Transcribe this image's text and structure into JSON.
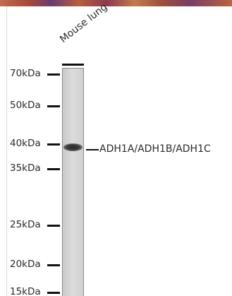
{
  "figure": {
    "lane_label": "Mouse lung",
    "band_label": "ADH1A/ADH1B/ADH1C",
    "markers": [
      {
        "label": "70kDa"
      },
      {
        "label": "50kDa"
      },
      {
        "label": "40kDa"
      },
      {
        "label": "35kDa"
      },
      {
        "label": "25kDa"
      },
      {
        "label": "20kDa"
      },
      {
        "label": "15kDa"
      }
    ]
  }
}
